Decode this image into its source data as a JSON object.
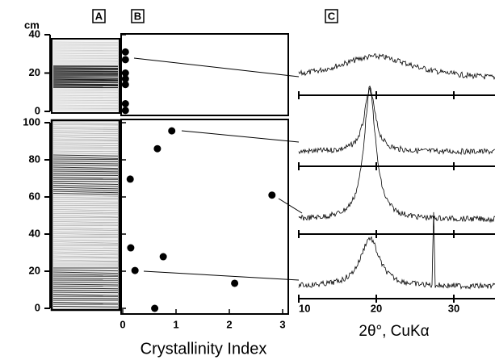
{
  "panels": [
    "A",
    "B",
    "C"
  ],
  "chart_data": [
    {
      "type": "scatter",
      "ylabel": "cm",
      "x": [
        0.05,
        0.05,
        0.05,
        0.05,
        0.05,
        0.05,
        0.05
      ],
      "values": [
        31,
        27,
        20,
        17,
        14,
        4,
        0.5
      ],
      "xlim": [
        0,
        3
      ],
      "ylim": [
        0,
        40
      ],
      "yticks": [
        0,
        20,
        40
      ],
      "color": "#000000"
    },
    {
      "type": "scatter",
      "xlabel": "Crystallinity Index",
      "x": [
        0.92,
        0.65,
        0.14,
        2.8,
        0.15,
        0.76,
        0.23,
        2.1,
        0.6
      ],
      "values": [
        95.6,
        86,
        69.6,
        61,
        32.6,
        27.8,
        20.4,
        13.5,
        0
      ],
      "xlim": [
        0,
        3
      ],
      "ylim": [
        0,
        100
      ],
      "xticks": [
        0,
        1,
        2,
        3
      ],
      "yticks": [
        0,
        20,
        40,
        60,
        80,
        100
      ],
      "color": "#000000"
    },
    {
      "type": "line",
      "xlabel": "2θ°, CuKα",
      "xlim": [
        10,
        35
      ],
      "xticks": [
        10,
        20,
        30
      ]
    }
  ]
}
